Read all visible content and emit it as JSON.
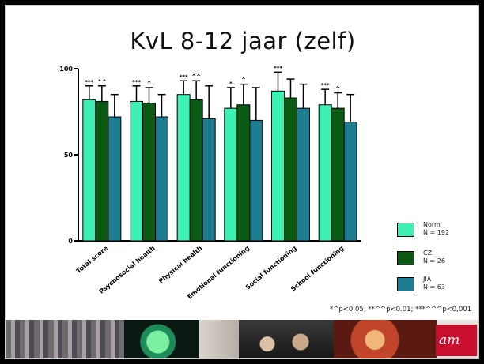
{
  "slide": {
    "title": "KvL 8-12 jaar (zelf)",
    "footnote": "*^p<0.05; **^^p<0.01; ***^^^p<0,001",
    "logo_text": "am",
    "colors": {
      "Norm": "#3ff0b5",
      "CZ": "#0b5a13",
      "JIA": "#1f7d91"
    }
  },
  "legend": [
    {
      "name": "Norm",
      "n": "N = 192"
    },
    {
      "name": "CZ",
      "n": "N = 26"
    },
    {
      "name": "JIA",
      "n": "N = 63"
    }
  ],
  "chart_data": {
    "type": "bar",
    "title": "KvL 8-12 jaar (zelf)",
    "categories": [
      "Total score",
      "Psychosocial health",
      "Physical health",
      "Emotional functioning",
      "Social functioning",
      "School functioning"
    ],
    "ylim": [
      0,
      100
    ],
    "yticks": [
      0,
      50,
      100
    ],
    "ytick_labels": [
      "0",
      "50",
      "100"
    ],
    "grid": false,
    "legend_position": "right",
    "series": [
      {
        "name": "Norm",
        "values": [
          82,
          81,
          85,
          77,
          87,
          79
        ],
        "error": [
          8,
          9,
          8,
          12,
          11,
          9
        ],
        "annotation": [
          "***",
          "***",
          "***",
          "*",
          "***",
          "***"
        ]
      },
      {
        "name": "CZ",
        "values": [
          81,
          80,
          82,
          79,
          83,
          77
        ],
        "error": [
          9,
          9,
          11,
          12,
          11,
          9
        ],
        "annotation": [
          "^^",
          "^",
          "^^",
          "^",
          "",
          "^"
        ]
      },
      {
        "name": "JIA",
        "values": [
          72,
          72,
          71,
          70,
          77,
          69
        ],
        "error": [
          13,
          13,
          19,
          19,
          14,
          16
        ],
        "annotation": [
          "",
          "",
          "",
          "",
          "",
          ""
        ]
      }
    ]
  }
}
